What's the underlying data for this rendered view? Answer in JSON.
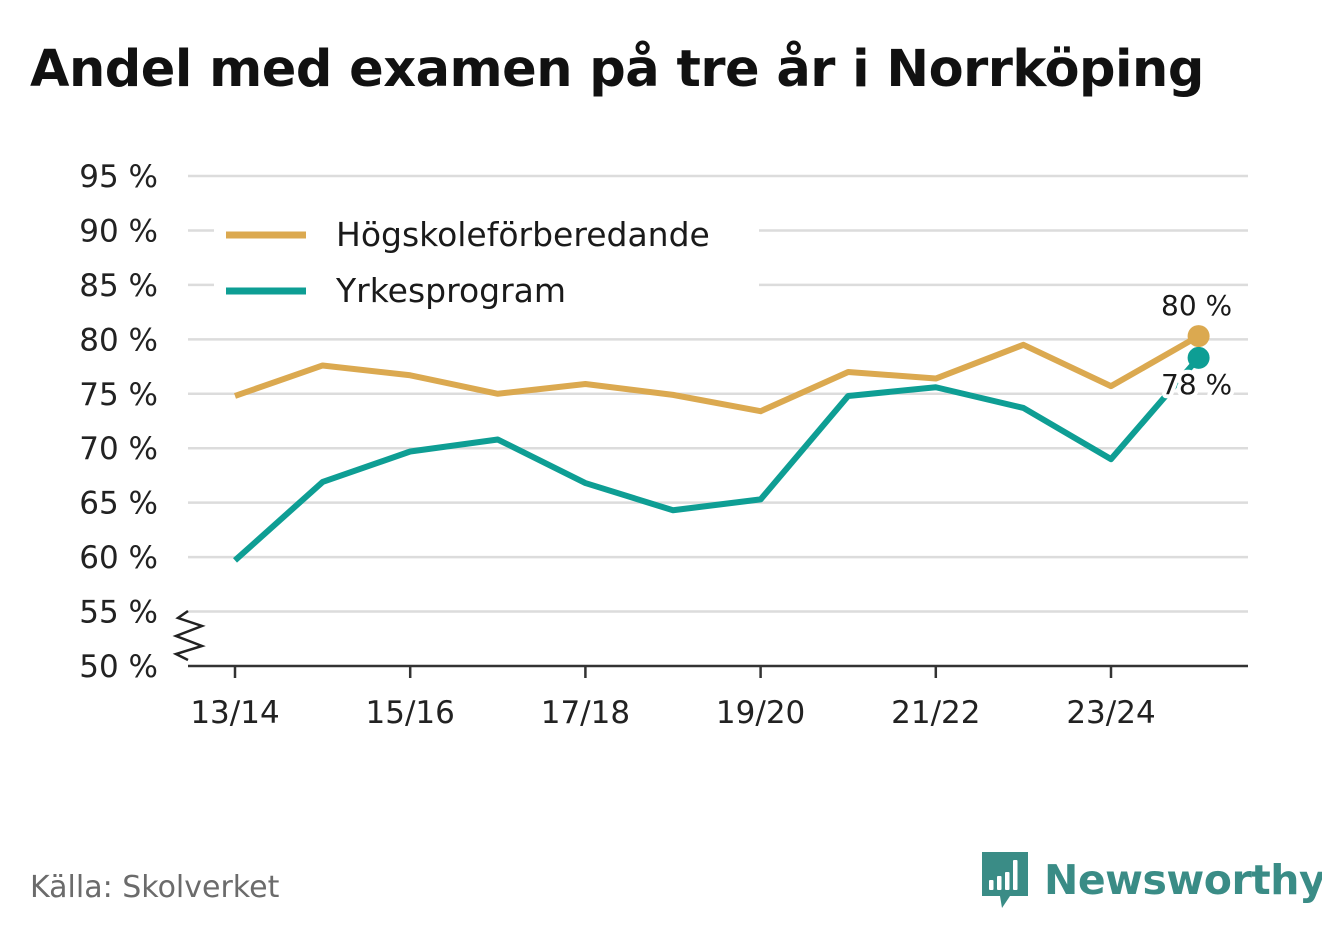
{
  "chart_data": {
    "type": "line",
    "title": "Andel med examen på tre år i Norrköping",
    "xlabel": "",
    "ylabel": "",
    "categories": [
      "13/14",
      "14/15",
      "15/16",
      "16/17",
      "17/18",
      "18/19",
      "19/20",
      "20/21",
      "21/22",
      "22/23",
      "23/24",
      "24/25"
    ],
    "tick_labels": [
      "13/14",
      "15/16",
      "17/18",
      "19/20",
      "21/22",
      "23/24"
    ],
    "y_ticks": [
      50,
      55,
      60,
      65,
      70,
      75,
      80,
      85,
      90,
      95
    ],
    "y_tick_suffix": " %",
    "ylim": [
      50,
      95
    ],
    "axis_break": true,
    "grid": true,
    "legend_position": "top-left",
    "series": [
      {
        "name": "Högskoleförberedande",
        "color": "#dba950",
        "values": [
          74.8,
          77.6,
          76.7,
          75.0,
          75.9,
          74.9,
          73.4,
          77.0,
          76.4,
          79.5,
          75.7,
          80.3
        ],
        "end_label": "80 %"
      },
      {
        "name": "Yrkesprogram",
        "color": "#0e9e94",
        "values": [
          59.7,
          66.9,
          69.7,
          70.8,
          66.8,
          64.3,
          65.3,
          74.8,
          75.6,
          73.7,
          69.0,
          78.3
        ],
        "end_label": "78 %"
      }
    ]
  },
  "footer": {
    "source": "Källa: Skolverket",
    "brand": "Newsworthy",
    "brand_color": "#3a8c86"
  }
}
